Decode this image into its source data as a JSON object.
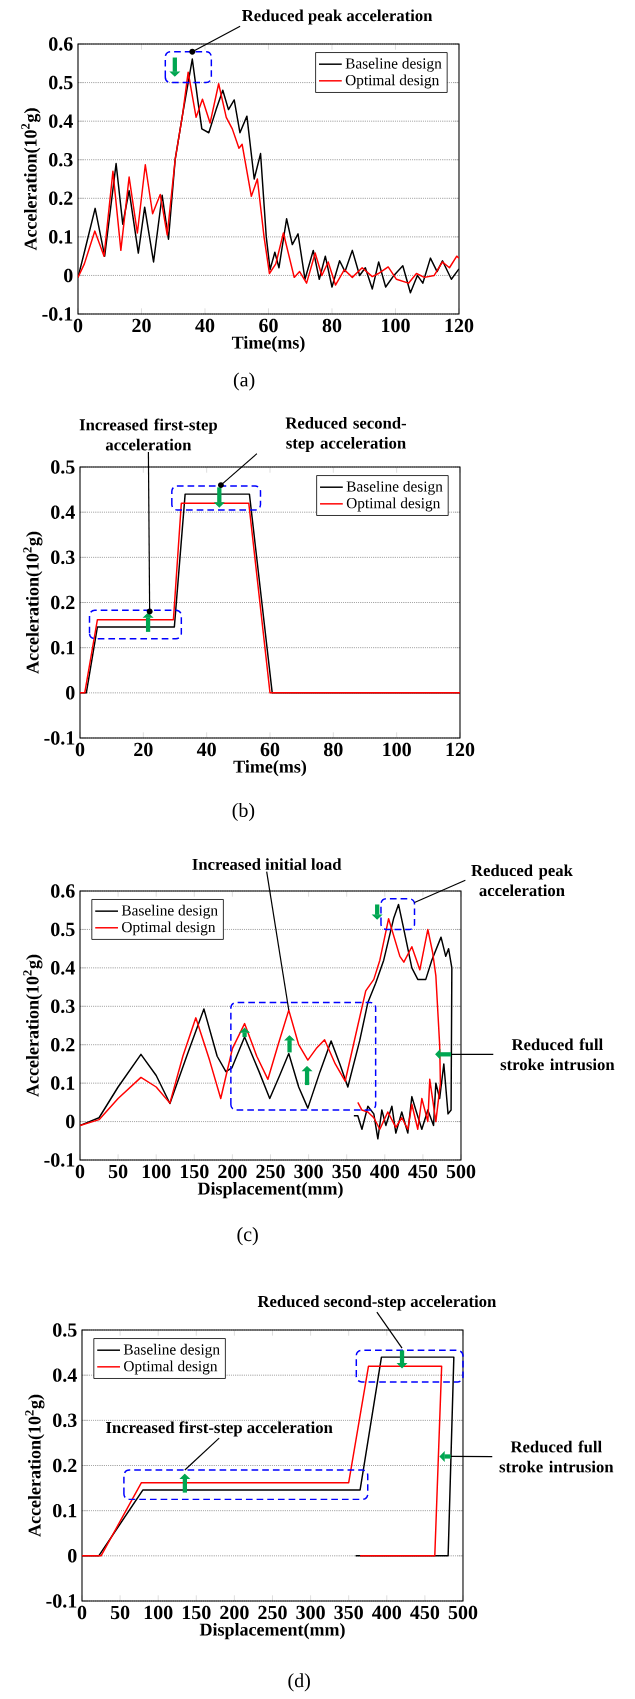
{
  "chart_data": [
    {
      "type": "line",
      "xlabel": "Time(ms)",
      "ylabel": "Acceleration(10$^{2}$g)",
      "xlim": [
        0,
        120
      ],
      "ylim": [
        -0.1,
        0.6
      ],
      "xticks": [
        0,
        20,
        40,
        60,
        80,
        100,
        120
      ],
      "yticks": [
        -0.1,
        0,
        0.1,
        0.2,
        0.3,
        0.4,
        0.5,
        0.6
      ],
      "grid": "y",
      "legend": "top right",
      "series": [
        {
          "name": "Baseline design",
          "color": "#000000",
          "x": [
            0,
            2,
            5.4,
            8.4,
            12,
            14.1,
            16.1,
            19,
            21,
            23.8,
            26.5,
            28.5,
            30.6,
            33,
            36,
            37.8,
            39,
            41.2,
            43.5,
            45.6,
            47.4,
            49.2,
            51,
            53.2,
            55.5,
            57.5,
            59.3,
            60.5,
            62,
            63.3,
            65.7,
            67.5,
            69.3,
            71.5,
            74.1,
            76,
            77.9,
            80,
            82.4,
            84.1,
            86.4,
            88.7,
            90.5,
            92.7,
            94.7,
            96.9,
            99.5,
            102.3,
            104.7,
            106.9,
            108.6,
            111,
            113.1,
            114.8,
            117.6,
            120
          ],
          "values": [
            -0.005,
            0.06,
            0.174,
            0.05,
            0.29,
            0.133,
            0.22,
            0.058,
            0.177,
            0.035,
            0.208,
            0.094,
            0.3,
            0.42,
            0.561,
            0.45,
            0.38,
            0.37,
            0.43,
            0.48,
            0.43,
            0.455,
            0.37,
            0.413,
            0.25,
            0.316,
            0.1,
            0.015,
            0.06,
            0.02,
            0.147,
            0.08,
            0.108,
            -0.01,
            0.065,
            -0.01,
            0.05,
            -0.03,
            0.038,
            0.01,
            0.065,
            0.0,
            0.02,
            -0.035,
            0.035,
            -0.03,
            0.0,
            0.025,
            -0.045,
            0.0,
            -0.02,
            0.045,
            0.01,
            0.038,
            -0.01,
            0.017
          ]
        },
        {
          "name": "Optimal design",
          "color": "#ff0000",
          "x": [
            0,
            2,
            5.3,
            8.2,
            11,
            13.5,
            16.1,
            18.7,
            21.2,
            23.5,
            25.9,
            28.1,
            30.6,
            33,
            34.7,
            37.2,
            39.2,
            41.6,
            44.3,
            46.7,
            48.6,
            50.7,
            51.7,
            54.6,
            56.5,
            58.6,
            60.3,
            62.3,
            64.7,
            68.1,
            69.8,
            72,
            74.7,
            76.8,
            78.8,
            81.1,
            83.9,
            86.4,
            89.5,
            92.7,
            94.6,
            97.7,
            100.3,
            104.1,
            106.6,
            109.1,
            112.2,
            114.8,
            117,
            119.3,
            120
          ],
          "values": [
            -0.005,
            0.03,
            0.115,
            0.05,
            0.27,
            0.065,
            0.255,
            0.11,
            0.287,
            0.16,
            0.21,
            0.105,
            0.3,
            0.42,
            0.527,
            0.41,
            0.457,
            0.395,
            0.497,
            0.41,
            0.38,
            0.33,
            0.34,
            0.205,
            0.25,
            0.1,
            0.005,
            0.03,
            0.11,
            -0.005,
            0.01,
            -0.02,
            0.058,
            0.0,
            0.035,
            -0.025,
            0.015,
            -0.005,
            0.02,
            -0.003,
            0.005,
            0.022,
            -0.01,
            -0.02,
            0.005,
            -0.005,
            0.0,
            0.035,
            0.02,
            0.05,
            0.045
          ]
        }
      ],
      "annotations": [
        "Reduced peak acceleration",
        "(a)"
      ]
    },
    {
      "type": "line",
      "xlabel": "Time(ms)",
      "ylabel": "Acceleration(10$^{2}$g)",
      "xlim": [
        0,
        120
      ],
      "ylim": [
        -0.1,
        0.5
      ],
      "xticks": [
        0,
        20,
        40,
        60,
        80,
        100,
        120
      ],
      "yticks": [
        -0.1,
        0,
        0.1,
        0.2,
        0.3,
        0.4,
        0.5
      ],
      "grid": "y",
      "legend": "top right",
      "series": [
        {
          "name": "Baseline design",
          "color": "#000000",
          "x": [
            0,
            2,
            5.5,
            29.8,
            33.2,
            53.5,
            60.7,
            120
          ],
          "values": [
            0,
            0,
            0.146,
            0.146,
            0.44,
            0.44,
            0,
            0
          ]
        },
        {
          "name": "Optimal design",
          "color": "#ff0000",
          "x": [
            0,
            1.5,
            5.5,
            29.5,
            32,
            53.3,
            60,
            120
          ],
          "values": [
            0,
            0,
            0.162,
            0.162,
            0.42,
            0.42,
            0,
            0
          ]
        }
      ],
      "annotations": [
        "Increased first-step acceleration",
        "Reduced second-step acceleration",
        "(b)"
      ]
    },
    {
      "type": "line",
      "xlabel": "Displacement(mm)",
      "ylabel": "Acceleration(10$^{2}$g)",
      "xlim": [
        0,
        500
      ],
      "ylim": [
        -0.1,
        0.6
      ],
      "xticks": [
        0,
        50,
        100,
        150,
        200,
        250,
        300,
        350,
        400,
        450,
        500
      ],
      "yticks": [
        -0.1,
        0,
        0.1,
        0.2,
        0.3,
        0.4,
        0.5,
        0.6
      ],
      "grid": "y",
      "legend": "top left",
      "series": [
        {
          "name": "Baseline design",
          "color": "#000000",
          "x": [
            0,
            25,
            50,
            80,
            100,
            118,
            140,
            162.6,
            180,
            191.5,
            199.4,
            216,
            235,
            249,
            262,
            274,
            287,
            299,
            315,
            329.5,
            341,
            351.5,
            367,
            377.8,
            388,
            398.6,
            411.8,
            418,
            425,
            435.5,
            443.3,
            453.8,
            461.7,
            473.8,
            480,
            483.7,
            488,
            487,
            483,
            477.5,
            472,
            467,
            464,
            456.5,
            448.6,
            440.7,
            435.5,
            430.2,
            422.3,
            414.5,
            409.3,
            401.4,
            396.1,
            390.9,
            385.6,
            377.8,
            370,
            364.6,
            359.4
          ],
          "values": [
            -0.01,
            0.01,
            0.09,
            0.175,
            0.12,
            0.047,
            0.17,
            0.293,
            0.17,
            0.13,
            0.14,
            0.22,
            0.13,
            0.06,
            0.12,
            0.177,
            0.09,
            0.035,
            0.13,
            0.21,
            0.15,
            0.09,
            0.21,
            0.31,
            0.36,
            0.42,
            0.53,
            0.565,
            0.5,
            0.4,
            0.37,
            0.37,
            0.42,
            0.48,
            0.43,
            0.45,
            0.4,
            0.03,
            0.02,
            0.15,
            0.06,
            0.1,
            -0.01,
            0.03,
            -0.02,
            0.03,
            0.065,
            -0.03,
            0.025,
            -0.03,
            0.04,
            -0.01,
            0.03,
            -0.045,
            0.02,
            0.04,
            -0.02,
            0.015,
            0.015
          ]
        },
        {
          "name": "Optimal design",
          "color": "#ff0000",
          "x": [
            0,
            25,
            50,
            80,
            100,
            118,
            135,
            152,
            170,
            184.7,
            200,
            216,
            232,
            246.6,
            260,
            274,
            287,
            299,
            310,
            321,
            335,
            348,
            364.6,
            375,
            385.6,
            393.5,
            405,
            419.8,
            425,
            435.5,
            446,
            456.5,
            462.8,
            467,
            472,
            473,
            467,
            459,
            456.5,
            448.6,
            443.3,
            435.5,
            430.2,
            422.3,
            414.5,
            404,
            393.5,
            385.6,
            377.8,
            370,
            364.6
          ],
          "values": [
            -0.01,
            0.005,
            0.06,
            0.115,
            0.09,
            0.048,
            0.17,
            0.27,
            0.16,
            0.06,
            0.19,
            0.255,
            0.17,
            0.11,
            0.2,
            0.29,
            0.2,
            0.16,
            0.19,
            0.213,
            0.15,
            0.105,
            0.25,
            0.34,
            0.37,
            0.42,
            0.528,
            0.43,
            0.415,
            0.455,
            0.395,
            0.5,
            0.44,
            0.38,
            0.2,
            0.1,
            0.0,
            0.11,
            0.0,
            0.06,
            -0.02,
            0.045,
            -0.02,
            0.01,
            -0.015,
            0.025,
            -0.02,
            0.01,
            0.025,
            0.03,
            0.05
          ]
        }
      ],
      "annotations": [
        {
          "text": "Increased initial load",
          "x": 274,
          "y": 0.29
        },
        "Reduced peak acceleration",
        "Reduced full stroke intrusion",
        "(c)"
      ]
    },
    {
      "type": "line",
      "xlabel": "Displacement(mm)",
      "ylabel": "Acceleration(10$^{2}$g)",
      "xlim": [
        0,
        500
      ],
      "ylim": [
        -0.1,
        0.5
      ],
      "xticks": [
        0,
        50,
        100,
        150,
        200,
        250,
        300,
        350,
        400,
        450,
        500
      ],
      "yticks": [
        -0.1,
        0,
        0.1,
        0.2,
        0.3,
        0.4,
        0.5
      ],
      "grid": "y",
      "legend": "top left",
      "series": [
        {
          "name": "Baseline design",
          "color": "#000000",
          "x": [
            0,
            22,
            80,
            365,
            393,
            488,
            480.5,
            359
          ],
          "values": [
            0,
            0,
            0.146,
            0.146,
            0.44,
            0.44,
            0,
            0
          ]
        },
        {
          "name": "Optimal design",
          "color": "#ff0000",
          "x": [
            0,
            25,
            78,
            350,
            376,
            472,
            463,
            365
          ],
          "values": [
            0,
            0,
            0.162,
            0.162,
            0.42,
            0.42,
            0,
            0
          ]
        }
      ],
      "annotations": [
        "Reduced second-step acceleration",
        "Increased first-step acceleration",
        "Reduced full stroke intrusion",
        "(d)"
      ]
    }
  ]
}
